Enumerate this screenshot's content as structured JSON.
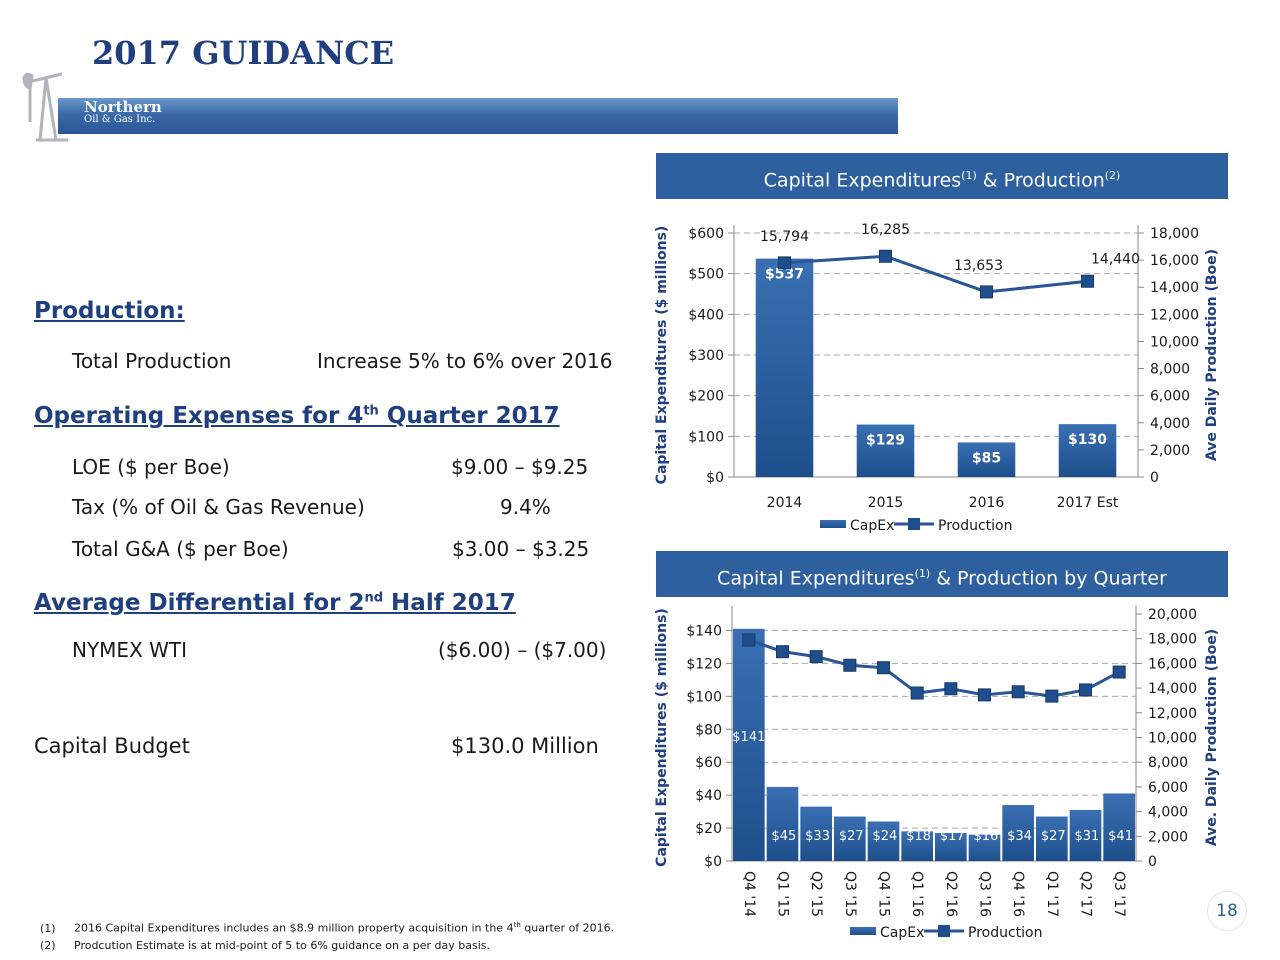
{
  "page": {
    "title": "2017 GUIDANCE",
    "page_number": "18",
    "brand_color": "#2e5f9f",
    "logo": {
      "line1": "Northern",
      "line2": "Oil & Gas Inc.",
      "icon": "pumpjack-icon"
    }
  },
  "guidance": {
    "production_heading": "Production:",
    "total_production_label": "Total Production",
    "total_production_value": "Increase 5% to 6% over 2016",
    "opex_heading_pre": "Operating Expenses for 4",
    "opex_heading_sup": "th",
    "opex_heading_post": " Quarter 2017",
    "loe_label": "LOE ($ per Boe)",
    "loe_value": "$9.00 – $9.25",
    "tax_label": "Tax (% of Oil & Gas Revenue)",
    "tax_value": "9.4%",
    "ga_label": "Total G&A ($ per Boe)",
    "ga_value": "$3.00 – $3.25",
    "diff_heading_pre": "Average Differential for 2",
    "diff_heading_sup": "nd",
    "diff_heading_post": " Half 2017",
    "nymex_label": "NYMEX WTI",
    "nymex_value": "($6.00) – ($7.00)",
    "capital_label": "Capital Budget",
    "capital_value": "$130.0 Million"
  },
  "panel1": {
    "title_pre": "Capital Expenditures",
    "sup1": "(1)",
    "title_mid": " & Production",
    "sup2": "(2)"
  },
  "panel2": {
    "title_pre": "Capital Expenditures",
    "sup1": "(1)",
    "title_post": " & Production by Quarter"
  },
  "chart_data": [
    {
      "type": "bar",
      "categories": [
        "2014",
        "2015",
        "2016",
        "2017 Est"
      ],
      "series": [
        {
          "name": "CapEx",
          "type": "bar",
          "axis": "left",
          "values": [
            537,
            129,
            85,
            130
          ],
          "labels": [
            "$537",
            "$129",
            "$85",
            "$130"
          ]
        },
        {
          "name": "Production",
          "type": "line",
          "axis": "right",
          "values": [
            15794,
            16285,
            13653,
            14440
          ],
          "labels": [
            "15,794",
            "16,285",
            "13,653",
            "14,440"
          ]
        }
      ],
      "ylabel": "Capital Expenditures ($ millions)",
      "y2label": "Ave Daily Production (Boe)",
      "ylim": [
        0,
        600
      ],
      "y2lim": [
        0,
        18000
      ],
      "yticks": [
        "$0",
        "$100",
        "$200",
        "$300",
        "$400",
        "$500",
        "$600"
      ],
      "y2ticks": [
        "0",
        "2,000",
        "4,000",
        "6,000",
        "8,000",
        "10,000",
        "12,000",
        "14,000",
        "16,000",
        "18,000"
      ],
      "grid": true,
      "legend": "bottom",
      "legend_labels": [
        "CapEx",
        "Production"
      ]
    },
    {
      "type": "bar",
      "categories": [
        "Q4 '14",
        "Q1 '15",
        "Q2 '15",
        "Q3 '15",
        "Q4 '15",
        "Q1 '16",
        "Q2 '16",
        "Q3 '16",
        "Q4 '16",
        "Q1 '17",
        "Q2 '17",
        "Q3 '17"
      ],
      "series": [
        {
          "name": "CapEx",
          "type": "bar",
          "axis": "left",
          "values": [
            141,
            45,
            33,
            27,
            24,
            18,
            17,
            16,
            34,
            27,
            31,
            41
          ],
          "labels": [
            "$141",
            "$45",
            "$33",
            "$27",
            "$24",
            "$18",
            "$17",
            "$16",
            "$34",
            "$27",
            "$31",
            "$41"
          ]
        },
        {
          "name": "Production",
          "type": "line",
          "axis": "right",
          "values": [
            17900,
            16950,
            16550,
            15850,
            15650,
            13600,
            13950,
            13450,
            13700,
            13350,
            13850,
            15300
          ]
        }
      ],
      "ylabel": "Capital Expenditures ($ millions)",
      "y2label": "Ave. Daily Production (Boe)",
      "ylim": [
        0,
        150
      ],
      "y2lim": [
        0,
        20000
      ],
      "yticks": [
        "$0",
        "$20",
        "$40",
        "$60",
        "$80",
        "$100",
        "$120",
        "$140"
      ],
      "y2ticks": [
        "0",
        "2,000",
        "4,000",
        "6,000",
        "8,000",
        "10,000",
        "12,000",
        "14,000",
        "16,000",
        "18,000",
        "20,000"
      ],
      "grid": true,
      "legend": "bottom",
      "legend_labels": [
        "CapEx",
        "Production"
      ]
    }
  ],
  "footnotes": [
    {
      "num": "(1)",
      "pre": "2016 Capital Expenditures includes an $8.9 million property acquisition in the 4",
      "sup": "th",
      "post": " quarter of 2016."
    },
    {
      "num": "(2)",
      "pre": "Prodcution Estimate is at mid-point of 5 to 6% guidance on a per day basis.",
      "sup": "",
      "post": ""
    }
  ]
}
